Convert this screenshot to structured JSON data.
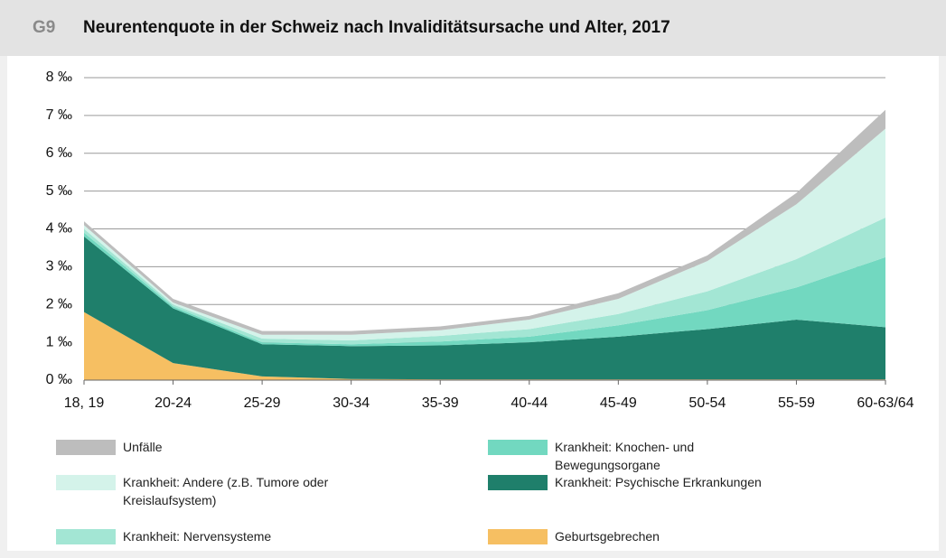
{
  "chart_data": {
    "type": "stacked_area",
    "label": "G9",
    "title": "Neurentenquote in der Schweiz nach Invaliditätsursache und Alter, 2017",
    "categories": [
      "18, 19",
      "20-24",
      "25-29",
      "30-34",
      "35-39",
      "40-44",
      "45-49",
      "50-54",
      "55-59",
      "60-63/64"
    ],
    "series": [
      {
        "name": "Geburtsgebrechen",
        "color": "#f6bf62",
        "values": [
          1.8,
          0.45,
          0.1,
          0.03,
          0.02,
          0.02,
          0.02,
          0.02,
          0.02,
          0.02
        ]
      },
      {
        "name": "Krankheit: Psychische Erkrankungen",
        "color": "#1f7f6b",
        "values": [
          2.0,
          1.45,
          0.85,
          0.87,
          0.9,
          0.98,
          1.13,
          1.33,
          1.58,
          1.38
        ]
      },
      {
        "name": "Krankheit: Knochen- und Bewegungsorgane",
        "color": "#72d8c0",
        "values": [
          0.1,
          0.05,
          0.05,
          0.05,
          0.1,
          0.15,
          0.3,
          0.5,
          0.85,
          1.85
        ]
      },
      {
        "name": "Krankheit: Nervensysteme",
        "color": "#a3e6d4",
        "values": [
          0.1,
          0.05,
          0.1,
          0.1,
          0.15,
          0.2,
          0.3,
          0.5,
          0.75,
          1.05
        ]
      },
      {
        "name": "Krankheit: Andere (z.B. Tumore oder Kreislaufsystem)",
        "color": "#d4f3ea",
        "values": [
          0.1,
          0.05,
          0.1,
          0.15,
          0.15,
          0.25,
          0.4,
          0.8,
          1.45,
          2.35
        ]
      },
      {
        "name": "Unfälle",
        "color": "#bdbdbd",
        "values": [
          0.1,
          0.1,
          0.1,
          0.1,
          0.1,
          0.1,
          0.15,
          0.15,
          0.3,
          0.5
        ]
      }
    ],
    "ylim": [
      0,
      8
    ],
    "yticks": [
      {
        "value": 0,
        "label": "0 ‰"
      },
      {
        "value": 1,
        "label": "1 ‰"
      },
      {
        "value": 2,
        "label": "2 ‰"
      },
      {
        "value": 3,
        "label": "3 ‰"
      },
      {
        "value": 4,
        "label": "4 ‰"
      },
      {
        "value": 5,
        "label": "5 ‰"
      },
      {
        "value": 6,
        "label": "6 ‰"
      },
      {
        "value": 7,
        "label": "7 ‰"
      },
      {
        "value": 8,
        "label": "8 ‰"
      }
    ],
    "grid": true
  }
}
